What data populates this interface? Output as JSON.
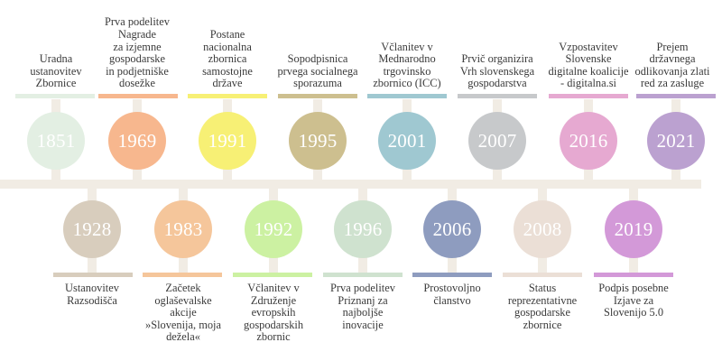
{
  "timeline": {
    "top": [
      {
        "year": "1851",
        "text": "Uradna\nustanovitev\nZbornice",
        "color": "#e3efe3"
      },
      {
        "year": "1969",
        "text": "Prva podelitev\nNagrade\nza izjemne\ngospodarske\nin podjetniške\ndosežke",
        "color": "#f7b78e"
      },
      {
        "year": "1991",
        "text": "Postane\nnacionalna\nzbornica\nsamostojne\ndržave",
        "color": "#f7f075"
      },
      {
        "year": "1995",
        "text": "Sopodpisnica\nprvega socialnega\nsporazuma",
        "color": "#cdbf8f"
      },
      {
        "year": "2001",
        "text": "Včlanitev v\nMednarodno\ntrgovinsko\nzbornico (ICC)",
        "color": "#9fc8d1"
      },
      {
        "year": "2007",
        "text": "Prvič organizira\nVrh slovenskega\ngospodarstva",
        "color": "#c7c9cb"
      },
      {
        "year": "2016",
        "text": "Vzpostavitev\nSlovenske\ndigitalne koalicije\n- digitalna.si",
        "color": "#e6a9d1"
      },
      {
        "year": "2021",
        "text": "Prejem\ndržavnega\nodlikovanja zlati\nred za zasluge",
        "color": "#bba1d0"
      }
    ],
    "bottom": [
      {
        "year": "1928",
        "text": "Ustanovitev\nRazsodišča",
        "color": "#d8cdbd"
      },
      {
        "year": "1983",
        "text": "Začetek\noglaševalske\nakcije\n»Slovenija, moja\ndežela«",
        "color": "#f5c69b"
      },
      {
        "year": "1992",
        "text": "Včlanitev v\nZdruženje\nevropskih\ngospodarskih\nzbornic",
        "color": "#ccf1a2"
      },
      {
        "year": "1996",
        "text": "Prva podelitev\nPriznanj za\nnajboljše\ninovacije",
        "color": "#cfe2cf"
      },
      {
        "year": "2006",
        "text": "Prostovoljno\nčlanstvo",
        "color": "#8e9cbf"
      },
      {
        "year": "2008",
        "text": "Status\nreprezentativne\ngospodarske\nzbornice",
        "color": "#ebdfd6"
      },
      {
        "year": "2019",
        "text": "Podpis posebne\nIzjave za\nSlovenijo 5.0",
        "color": "#d399d8"
      }
    ]
  }
}
